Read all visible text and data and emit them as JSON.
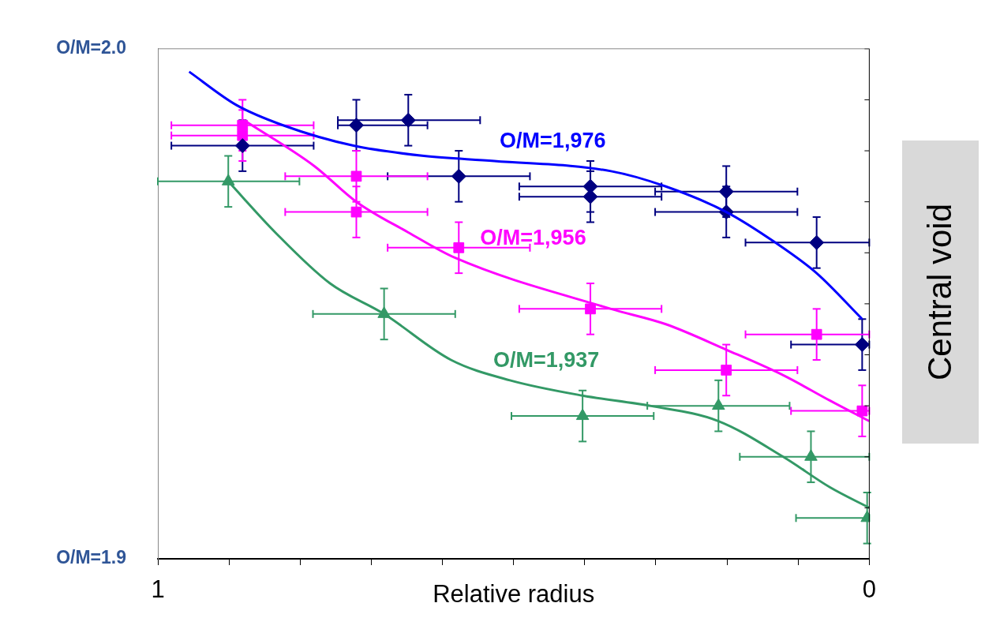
{
  "chart_data": {
    "type": "scatter",
    "xlabel": "Relative radius",
    "annotations": [
      "Central void"
    ],
    "xlim": [
      1,
      0
    ],
    "xticks": [
      1,
      {
        "value": 0.9,
        "label": null
      },
      {
        "value": 0.8,
        "label": null
      },
      {
        "value": 0.7,
        "label": null
      },
      {
        "value": 0.6,
        "label": null
      },
      {
        "value": 0.5,
        "label": null
      },
      {
        "value": 0.4,
        "label": null
      },
      {
        "value": 0.3,
        "label": null
      },
      {
        "value": 0.2,
        "label": null
      },
      {
        "value": 0.1,
        "label": null
      },
      0
    ],
    "ylim": [
      1.9,
      2.0
    ],
    "yticks": [
      {
        "value": 1.9,
        "label": "O/M=1.9"
      },
      {
        "value": 1.91,
        "label": null
      },
      {
        "value": 1.92,
        "label": null
      },
      {
        "value": 1.93,
        "label": null
      },
      {
        "value": 1.94,
        "label": null
      },
      {
        "value": 1.95,
        "label": null
      },
      {
        "value": 1.96,
        "label": null
      },
      {
        "value": 1.97,
        "label": null
      },
      {
        "value": 1.98,
        "label": null
      },
      {
        "value": 1.99,
        "label": null
      },
      {
        "value": 2.0,
        "label": "O/M=2.0"
      }
    ],
    "grid": false,
    "series": [
      {
        "type": "line",
        "name": "O/M=1,976",
        "color": "#0000ff",
        "x": [
          0.956,
          0.89,
          0.824,
          0.725,
          0.626,
          0.527,
          0.363,
          0.286,
          0.201,
          0.132,
          0.074,
          0.01
        ],
        "values": [
          1.9955,
          1.989,
          1.985,
          1.981,
          1.979,
          1.978,
          1.976,
          1.973,
          1.968,
          1.962,
          1.956,
          1.947
        ]
      },
      {
        "type": "line",
        "name": "O/M=1,956",
        "color": "#ff00ff",
        "x": [
          0.879,
          0.78,
          0.721,
          0.648,
          0.582,
          0.363,
          0.286,
          0.201,
          0.121,
          0.055,
          0.0
        ],
        "values": [
          1.986,
          1.977,
          1.97,
          1.964,
          1.959,
          1.949,
          1.946,
          1.941,
          1.936,
          1.931,
          1.927
        ]
      },
      {
        "type": "line",
        "name": "O/M=1,937",
        "color": "#339966",
        "x": [
          0.901,
          0.835,
          0.758,
          0.682,
          0.588,
          0.505,
          0.403,
          0.308,
          0.212,
          0.121,
          0.055,
          0.0
        ],
        "values": [
          1.974,
          1.964,
          1.954,
          1.948,
          1.939,
          1.935,
          1.932,
          1.93,
          1.927,
          1.92,
          1.914,
          1.91
        ]
      },
      {
        "type": "scatter",
        "marker": "diamond",
        "color": "#000080",
        "x": [
          0.881,
          0.721,
          0.648,
          0.577,
          0.392,
          0.392,
          0.201,
          0.201,
          0.074,
          0.01
        ],
        "values": [
          1.981,
          1.985,
          1.986,
          1.975,
          1.973,
          1.971,
          1.972,
          1.968,
          1.962,
          1.942
        ],
        "errors": [
          0.005,
          0.005,
          0.005,
          0.005,
          0.005,
          0.005,
          0.005,
          0.005,
          0.005,
          0.005
        ],
        "xerrors": [
          0.1,
          [
            0.621,
            0.747
          ],
          [
            0.547,
            0.747
          ],
          0.1,
          0.1,
          0.1,
          0.1,
          0.1,
          [
            0,
            0.174
          ],
          [
            0,
            0.11
          ]
        ]
      },
      {
        "type": "scatter",
        "marker": "square",
        "color": "#ff00ff",
        "x": [
          0.881,
          0.881,
          0.721,
          0.721,
          0.577,
          0.392,
          0.201,
          0.074,
          0.01
        ],
        "values": [
          1.985,
          1.983,
          1.975,
          1.968,
          1.961,
          1.949,
          1.937,
          1.944,
          1.929
        ],
        "errors": [
          0.005,
          0.005,
          0.005,
          0.005,
          0.005,
          0.005,
          0.005,
          0.005,
          0.005
        ],
        "xerrors": [
          0.1,
          0.1,
          0.1,
          0.1,
          0.1,
          0.1,
          0.1,
          [
            0,
            0.174
          ],
          [
            0,
            0.11
          ]
        ]
      },
      {
        "type": "scatter",
        "marker": "triangle",
        "color": "#339966",
        "x": [
          0.901,
          0.682,
          0.403,
          0.212,
          0.082,
          0.003
        ],
        "values": [
          1.974,
          1.948,
          1.928,
          1.93,
          1.92,
          1.908
        ],
        "errors": [
          0.005,
          0.005,
          0.005,
          0.005,
          0.005,
          0.005
        ],
        "xerrors": [
          [
            0.801,
            1.0
          ],
          [
            0.582,
            0.782
          ],
          0.1,
          0.1,
          [
            0,
            0.182
          ],
          [
            0,
            0.103
          ]
        ]
      }
    ]
  }
}
